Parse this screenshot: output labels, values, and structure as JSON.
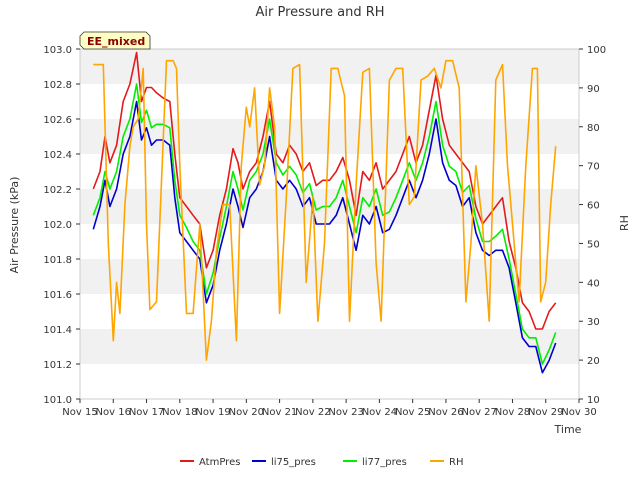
{
  "chart_data": {
    "type": "line",
    "title": "Air Pressure and RH",
    "badge": "EE_mixed",
    "xlabel": "Time",
    "ylabel": "Air Pressure (kPa)",
    "ylabel_right": "RH",
    "xlim": [
      15,
      30
    ],
    "ylim": [
      101.0,
      103.0
    ],
    "ylim_right": [
      10,
      100
    ],
    "x_ticks": [
      15,
      16,
      17,
      18,
      19,
      20,
      21,
      22,
      23,
      24,
      25,
      26,
      27,
      28,
      29,
      30
    ],
    "x_tick_labels": [
      "Nov 15",
      "Nov 16",
      "Nov 17",
      "Nov 18",
      "Nov 19",
      "Nov 20",
      "Nov 21",
      "Nov 22",
      "Nov 23",
      "Nov 24",
      "Nov 25",
      "Nov 26",
      "Nov 27",
      "Nov 28",
      "Nov 29",
      "Nov 30"
    ],
    "y_ticks": [
      101.0,
      101.2,
      101.4,
      101.6,
      101.8,
      102.0,
      102.2,
      102.4,
      102.6,
      102.8,
      103.0
    ],
    "y_tick_labels": [
      "101.0",
      "101.2",
      "101.4",
      "101.6",
      "101.8",
      "102.0",
      "102.2",
      "102.4",
      "102.6",
      "102.8",
      "103.0"
    ],
    "y_right_ticks": [
      10,
      20,
      30,
      40,
      50,
      60,
      70,
      80,
      90,
      100
    ],
    "y_right_tick_labels": [
      "10",
      "20",
      "30",
      "40",
      "50",
      "60",
      "70",
      "80",
      "90",
      "100"
    ],
    "legend_position": "bottom-center",
    "grid": "horizontal bands",
    "series": [
      {
        "name": "AtmPres",
        "color": "#e31a1c",
        "axis": "left",
        "x": [
          15.4,
          15.6,
          15.75,
          15.9,
          16.1,
          16.3,
          16.5,
          16.7,
          16.85,
          17.0,
          17.15,
          17.3,
          17.5,
          17.7,
          17.85,
          18.0,
          18.2,
          18.4,
          18.6,
          18.8,
          19.0,
          19.2,
          19.4,
          19.6,
          19.75,
          19.9,
          20.1,
          20.3,
          20.5,
          20.7,
          20.9,
          21.1,
          21.3,
          21.5,
          21.7,
          21.9,
          22.1,
          22.3,
          22.5,
          22.7,
          22.9,
          23.1,
          23.3,
          23.5,
          23.7,
          23.9,
          24.1,
          24.3,
          24.5,
          24.7,
          24.9,
          25.1,
          25.3,
          25.5,
          25.7,
          25.9,
          26.1,
          26.3,
          26.5,
          26.7,
          26.9,
          27.1,
          27.3,
          27.5,
          27.7,
          27.9,
          28.1,
          28.3,
          28.5,
          28.7,
          28.9,
          29.1,
          29.3
        ],
        "y": [
          102.2,
          102.3,
          102.5,
          102.35,
          102.45,
          102.7,
          102.8,
          102.98,
          102.7,
          102.78,
          102.78,
          102.75,
          102.72,
          102.7,
          102.4,
          102.15,
          102.1,
          102.05,
          102.0,
          101.75,
          101.85,
          102.05,
          102.2,
          102.43,
          102.35,
          102.2,
          102.3,
          102.35,
          102.5,
          102.7,
          102.4,
          102.35,
          102.45,
          102.4,
          102.3,
          102.35,
          102.22,
          102.25,
          102.25,
          102.3,
          102.38,
          102.25,
          102.05,
          102.3,
          102.25,
          102.35,
          102.2,
          102.25,
          102.3,
          102.4,
          102.5,
          102.35,
          102.45,
          102.65,
          102.85,
          102.6,
          102.45,
          102.4,
          102.35,
          102.3,
          102.1,
          102.0,
          102.05,
          102.1,
          102.15,
          101.9,
          101.75,
          101.55,
          101.5,
          101.4,
          101.4,
          101.5,
          101.55
        ]
      },
      {
        "name": "li75_pres",
        "color": "#0000cc",
        "axis": "left",
        "x": [
          15.4,
          15.6,
          15.75,
          15.9,
          16.1,
          16.3,
          16.5,
          16.7,
          16.85,
          17.0,
          17.15,
          17.3,
          17.5,
          17.7,
          17.85,
          18.0,
          18.2,
          18.4,
          18.6,
          18.8,
          19.0,
          19.2,
          19.4,
          19.6,
          19.75,
          19.9,
          20.1,
          20.3,
          20.5,
          20.7,
          20.9,
          21.1,
          21.3,
          21.5,
          21.7,
          21.9,
          22.1,
          22.3,
          22.5,
          22.7,
          22.9,
          23.1,
          23.3,
          23.5,
          23.7,
          23.9,
          24.1,
          24.3,
          24.5,
          24.7,
          24.9,
          25.1,
          25.3,
          25.5,
          25.7,
          25.9,
          26.1,
          26.3,
          26.5,
          26.7,
          26.9,
          27.1,
          27.3,
          27.5,
          27.7,
          27.9,
          28.1,
          28.3,
          28.5,
          28.7,
          28.9,
          29.1,
          29.3
        ],
        "y": [
          101.97,
          102.1,
          102.25,
          102.1,
          102.2,
          102.4,
          102.5,
          102.7,
          102.48,
          102.55,
          102.45,
          102.48,
          102.48,
          102.45,
          102.15,
          101.95,
          101.9,
          101.85,
          101.8,
          101.55,
          101.65,
          101.85,
          102.0,
          102.2,
          102.1,
          101.98,
          102.15,
          102.2,
          102.3,
          102.5,
          102.25,
          102.2,
          102.25,
          102.2,
          102.1,
          102.15,
          102.0,
          102.0,
          102.0,
          102.05,
          102.15,
          102.0,
          101.85,
          102.05,
          102.0,
          102.1,
          101.95,
          101.97,
          102.05,
          102.15,
          102.25,
          102.15,
          102.25,
          102.4,
          102.6,
          102.35,
          102.25,
          102.22,
          102.1,
          102.15,
          101.95,
          101.85,
          101.82,
          101.85,
          101.85,
          101.75,
          101.55,
          101.35,
          101.3,
          101.3,
          101.15,
          101.22,
          101.32
        ]
      },
      {
        "name": "li77_pres",
        "color": "#00ee00",
        "axis": "left",
        "x": [
          15.4,
          15.6,
          15.75,
          15.9,
          16.1,
          16.3,
          16.5,
          16.7,
          16.85,
          17.0,
          17.15,
          17.3,
          17.5,
          17.7,
          17.85,
          18.0,
          18.2,
          18.4,
          18.6,
          18.8,
          19.0,
          19.2,
          19.4,
          19.6,
          19.75,
          19.9,
          20.1,
          20.3,
          20.5,
          20.7,
          20.9,
          21.1,
          21.3,
          21.5,
          21.7,
          21.9,
          22.1,
          22.3,
          22.5,
          22.7,
          22.9,
          23.1,
          23.3,
          23.5,
          23.7,
          23.9,
          24.1,
          24.3,
          24.5,
          24.7,
          24.9,
          25.1,
          25.3,
          25.5,
          25.7,
          25.9,
          26.1,
          26.3,
          26.5,
          26.7,
          26.9,
          27.1,
          27.3,
          27.5,
          27.7,
          27.9,
          28.1,
          28.3,
          28.5,
          28.7,
          28.9,
          29.1,
          29.3
        ],
        "y": [
          102.05,
          102.15,
          102.3,
          102.2,
          102.3,
          102.5,
          102.6,
          102.8,
          102.58,
          102.65,
          102.55,
          102.57,
          102.57,
          102.55,
          102.25,
          102.05,
          101.98,
          101.9,
          101.85,
          101.6,
          101.72,
          101.92,
          102.1,
          102.3,
          102.2,
          102.08,
          102.25,
          102.3,
          102.4,
          102.6,
          102.35,
          102.28,
          102.33,
          102.28,
          102.18,
          102.23,
          102.08,
          102.1,
          102.1,
          102.15,
          102.25,
          102.1,
          101.95,
          102.15,
          102.1,
          102.2,
          102.05,
          102.07,
          102.15,
          102.25,
          102.35,
          102.25,
          102.35,
          102.5,
          102.7,
          102.45,
          102.33,
          102.3,
          102.18,
          102.22,
          102.03,
          101.9,
          101.9,
          101.93,
          101.97,
          101.8,
          101.6,
          101.4,
          101.35,
          101.35,
          101.2,
          101.28,
          101.38
        ]
      },
      {
        "name": "RH",
        "color": "#ffa500",
        "axis": "right",
        "x": [
          15.4,
          15.7,
          15.85,
          16.0,
          16.1,
          16.2,
          16.35,
          16.5,
          16.6,
          16.75,
          16.9,
          17.0,
          17.1,
          17.3,
          17.6,
          17.8,
          17.9,
          18.0,
          18.2,
          18.4,
          18.6,
          18.8,
          18.95,
          19.1,
          19.3,
          19.5,
          19.7,
          19.85,
          20.0,
          20.1,
          20.25,
          20.4,
          20.55,
          20.7,
          20.85,
          21.0,
          21.2,
          21.4,
          21.6,
          21.8,
          22.0,
          22.15,
          22.35,
          22.55,
          22.75,
          22.95,
          23.1,
          23.3,
          23.5,
          23.7,
          23.9,
          24.05,
          24.3,
          24.5,
          24.7,
          24.9,
          25.05,
          25.25,
          25.45,
          25.65,
          25.85,
          26.0,
          26.2,
          26.4,
          26.6,
          26.75,
          26.9,
          27.1,
          27.3,
          27.5,
          27.7,
          27.85,
          28.0,
          28.2,
          28.4,
          28.6,
          28.75,
          28.85,
          29.0,
          29.15,
          29.3
        ],
        "y": [
          96,
          96,
          50,
          25,
          40,
          32,
          60,
          75,
          80,
          82,
          95,
          55,
          33,
          35,
          97,
          97,
          95,
          70,
          32,
          32,
          55,
          20,
          30,
          48,
          60,
          60,
          25,
          70,
          85,
          80,
          90,
          65,
          70,
          90,
          80,
          32,
          62,
          95,
          96,
          40,
          62,
          30,
          50,
          95,
          95,
          88,
          30,
          65,
          94,
          95,
          45,
          30,
          92,
          95,
          95,
          60,
          62,
          92,
          93,
          95,
          90,
          97,
          97,
          90,
          35,
          50,
          70,
          55,
          30,
          92,
          96,
          70,
          55,
          35,
          70,
          95,
          95,
          35,
          40,
          60,
          75
        ]
      }
    ]
  }
}
